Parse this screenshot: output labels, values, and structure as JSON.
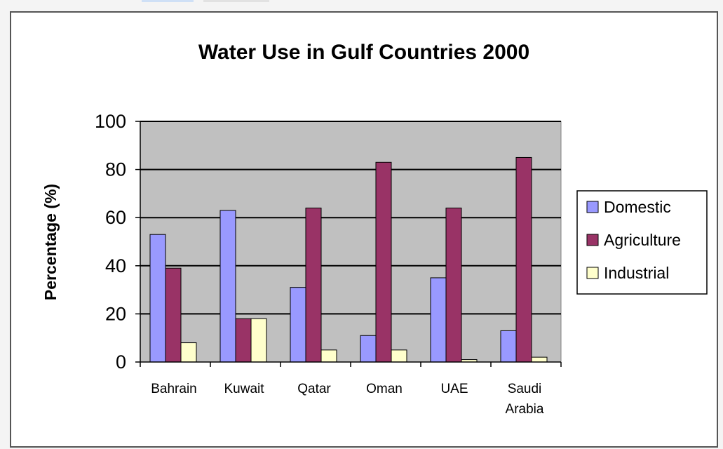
{
  "chart_data": {
    "type": "bar",
    "title": "Water Use in Gulf Countries 2000",
    "ylabel": "Percentage (%)",
    "xlabel": "",
    "ylim": [
      0,
      100
    ],
    "yticks": [
      0,
      20,
      40,
      60,
      80,
      100
    ],
    "grid": true,
    "legend_position": "right",
    "categories": [
      "Bahrain",
      "Kuwait",
      "Qatar",
      "Oman",
      "UAE",
      "Saudi Arabia"
    ],
    "category_lines": [
      [
        "Bahrain"
      ],
      [
        "Kuwait"
      ],
      [
        "Qatar"
      ],
      [
        "Oman"
      ],
      [
        "UAE"
      ],
      [
        "Saudi",
        "Arabia"
      ]
    ],
    "series": [
      {
        "name": "Domestic",
        "color": "#9999ff",
        "values": [
          53,
          63,
          31,
          11,
          35,
          13
        ]
      },
      {
        "name": "Agriculture",
        "color": "#993366",
        "values": [
          39,
          18,
          64,
          83,
          64,
          85
        ]
      },
      {
        "name": "Industrial",
        "color": "#ffffcc",
        "values": [
          8,
          18,
          5,
          5,
          1,
          2
        ]
      }
    ],
    "plot_background": "#c0c0c0"
  }
}
